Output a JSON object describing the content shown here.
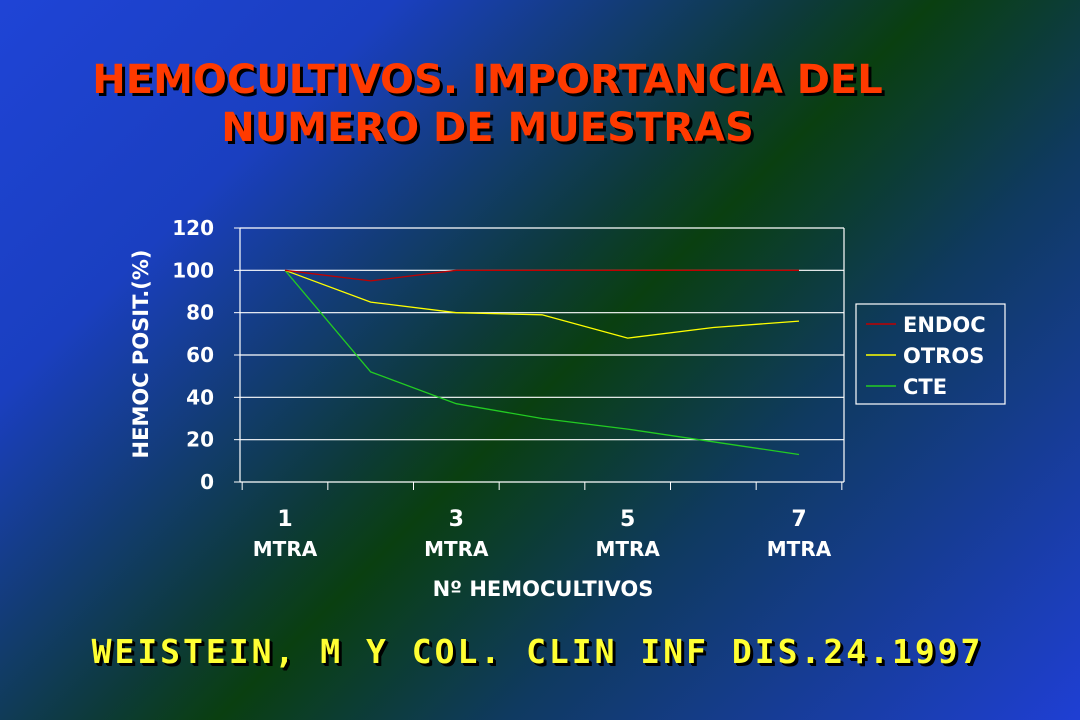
{
  "title": {
    "line1": "HEMOCULTIVOS. IMPORTANCIA DEL",
    "line2": "NUMERO DE MUESTRAS"
  },
  "citation": "WEISTEIN, M Y COL. CLIN INF DIS.24.1997",
  "chart_data": {
    "type": "line",
    "title": "",
    "xlabel": "Nº HEMOCULTIVOS",
    "ylabel": "HEMOC POSIT.(%)",
    "ylim": [
      0,
      120
    ],
    "yticks": [
      0,
      20,
      40,
      60,
      80,
      100,
      120
    ],
    "x": [
      1,
      2,
      3,
      4,
      5,
      6,
      7
    ],
    "x_tick_labels": [
      {
        "x": 1,
        "num": "1",
        "unit": "MTRA"
      },
      {
        "x": 3,
        "num": "3",
        "unit": "MTRA"
      },
      {
        "x": 5,
        "num": "5",
        "unit": "MTRA"
      },
      {
        "x": 7,
        "num": "7",
        "unit": "MTRA"
      }
    ],
    "grid": "horizontal",
    "legend": "right",
    "series": [
      {
        "name": "ENDOC",
        "color": "#c00000",
        "values": [
          100,
          95,
          100,
          100,
          100,
          100,
          100
        ]
      },
      {
        "name": "OTROS",
        "color": "#ffff00",
        "values": [
          100,
          85,
          80,
          79,
          68,
          73,
          76
        ]
      },
      {
        "name": "CTE",
        "color": "#22cc22",
        "values": [
          100,
          52,
          37,
          30,
          25,
          19,
          13
        ]
      }
    ]
  }
}
